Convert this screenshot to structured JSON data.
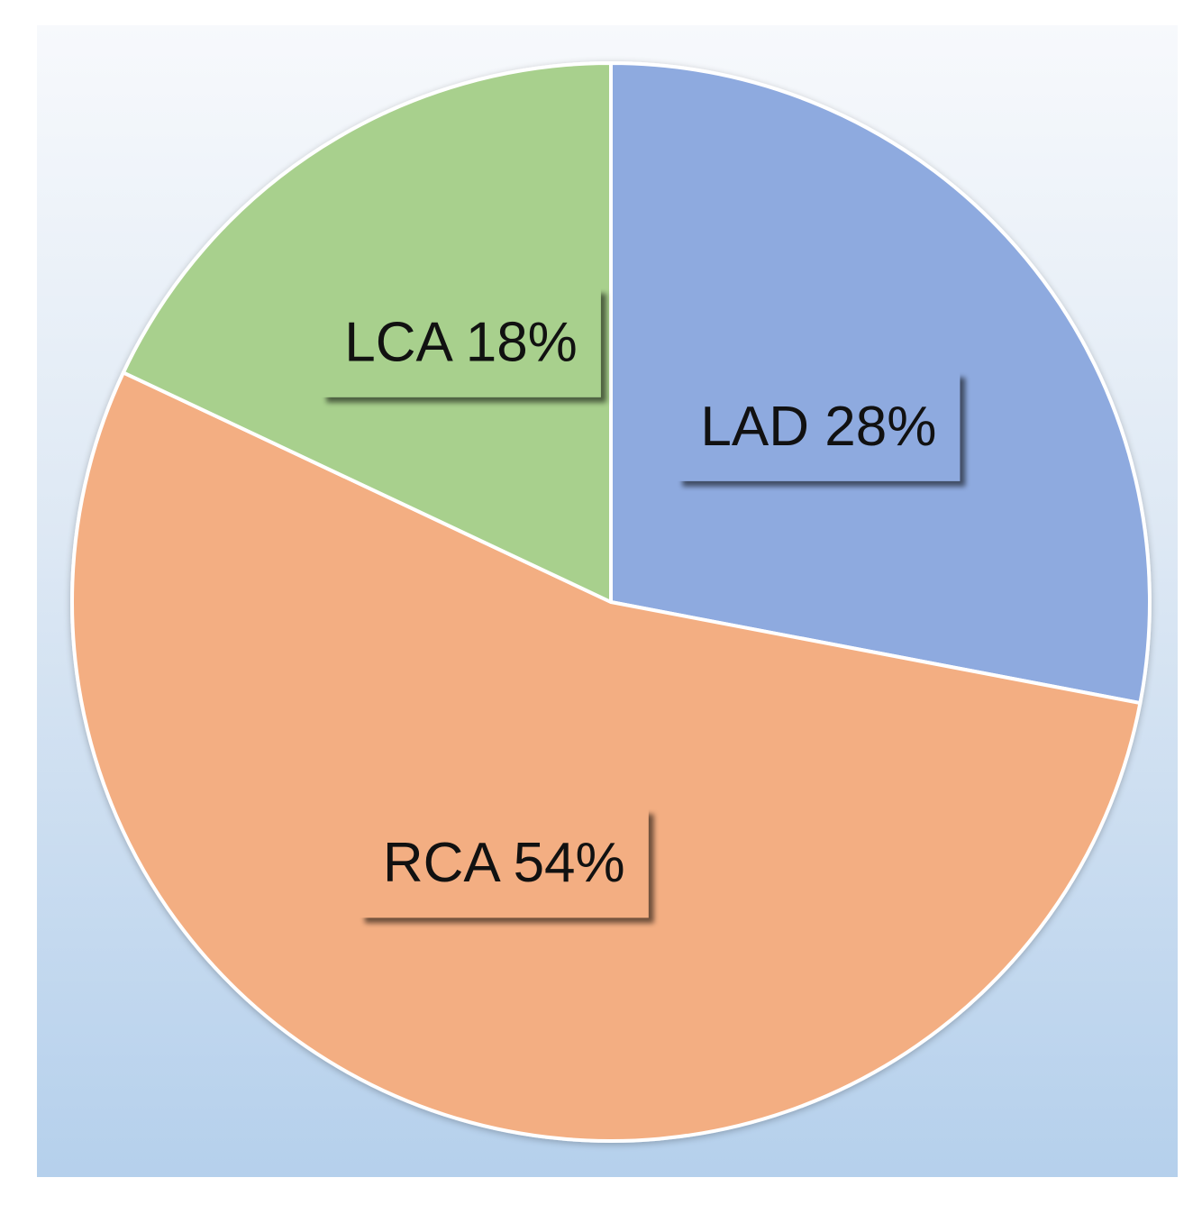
{
  "chart_data": {
    "type": "pie",
    "title": "",
    "categories": [
      "LAD",
      "RCA",
      "LCA"
    ],
    "values": [
      28,
      54,
      18
    ],
    "unit": "%",
    "labels": [
      "LAD 28%",
      "RCA 54%",
      "LCA 18%"
    ],
    "colors": [
      "#8eaadf",
      "#f3ae82",
      "#a8d08d"
    ],
    "start_angle_deg": 0,
    "direction": "clockwise",
    "legend": "none",
    "data_labels": "on-slice"
  }
}
